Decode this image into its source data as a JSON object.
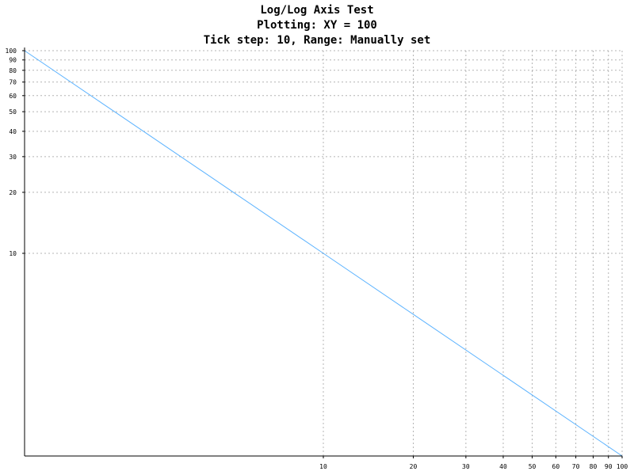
{
  "chart_data": {
    "type": "line",
    "title": [
      "Log/Log Axis Test",
      "Plotting: XY = 100",
      "Tick step: 10, Range: Manually set"
    ],
    "xlabel": "",
    "ylabel": "",
    "x_scale": "log",
    "y_scale": "log",
    "xlim": [
      1,
      100
    ],
    "ylim": [
      1,
      100
    ],
    "x_tick_labels": [
      "10",
      "20",
      "30",
      "40",
      "50",
      "60",
      "70",
      "80",
      "90",
      "100"
    ],
    "y_tick_labels": [
      "10",
      "20",
      "30",
      "40",
      "50",
      "60",
      "70",
      "80",
      "90",
      "100"
    ],
    "grid": true,
    "series": [
      {
        "x": [
          1,
          2,
          5,
          10,
          20,
          50,
          100
        ],
        "y": [
          100,
          50,
          20,
          10,
          5,
          2,
          1
        ]
      }
    ],
    "colors": {
      "series": "#5cb3ff",
      "grid": "#b4b4b4",
      "axis": "#000000"
    }
  }
}
